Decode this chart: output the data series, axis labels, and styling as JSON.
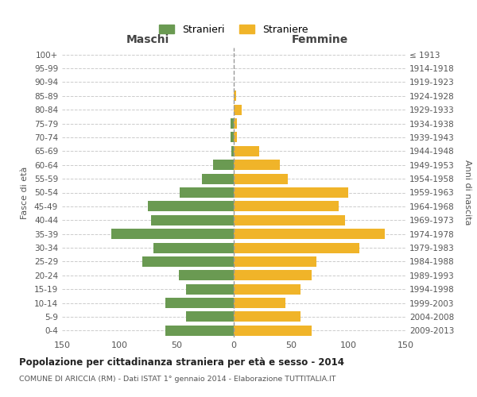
{
  "age_groups": [
    "0-4",
    "5-9",
    "10-14",
    "15-19",
    "20-24",
    "25-29",
    "30-34",
    "35-39",
    "40-44",
    "45-49",
    "50-54",
    "55-59",
    "60-64",
    "65-69",
    "70-74",
    "75-79",
    "80-84",
    "85-89",
    "90-94",
    "95-99",
    "100+"
  ],
  "birth_years": [
    "2009-2013",
    "2004-2008",
    "1999-2003",
    "1994-1998",
    "1989-1993",
    "1984-1988",
    "1979-1983",
    "1974-1978",
    "1969-1973",
    "1964-1968",
    "1959-1963",
    "1954-1958",
    "1949-1953",
    "1944-1948",
    "1939-1943",
    "1934-1938",
    "1929-1933",
    "1924-1928",
    "1919-1923",
    "1914-1918",
    "≤ 1913"
  ],
  "males": [
    60,
    42,
    60,
    42,
    48,
    80,
    70,
    107,
    72,
    75,
    47,
    28,
    18,
    2,
    3,
    3,
    0,
    0,
    0,
    0,
    0
  ],
  "females": [
    68,
    58,
    45,
    58,
    68,
    72,
    110,
    132,
    97,
    92,
    100,
    47,
    40,
    22,
    3,
    3,
    7,
    2,
    0,
    0,
    0
  ],
  "male_color": "#6a9a52",
  "female_color": "#f0b429",
  "background_color": "#ffffff",
  "grid_color": "#cccccc",
  "title": "Popolazione per cittadinanza straniera per età e sesso - 2014",
  "subtitle": "COMUNE DI ARICCIA (RM) - Dati ISTAT 1° gennaio 2014 - Elaborazione TUTTITALIA.IT",
  "xlabel_left": "Maschi",
  "xlabel_right": "Femmine",
  "ylabel_left": "Fasce di età",
  "ylabel_right": "Anni di nascita",
  "legend_male": "Stranieri",
  "legend_female": "Straniere",
  "xlim": 150
}
